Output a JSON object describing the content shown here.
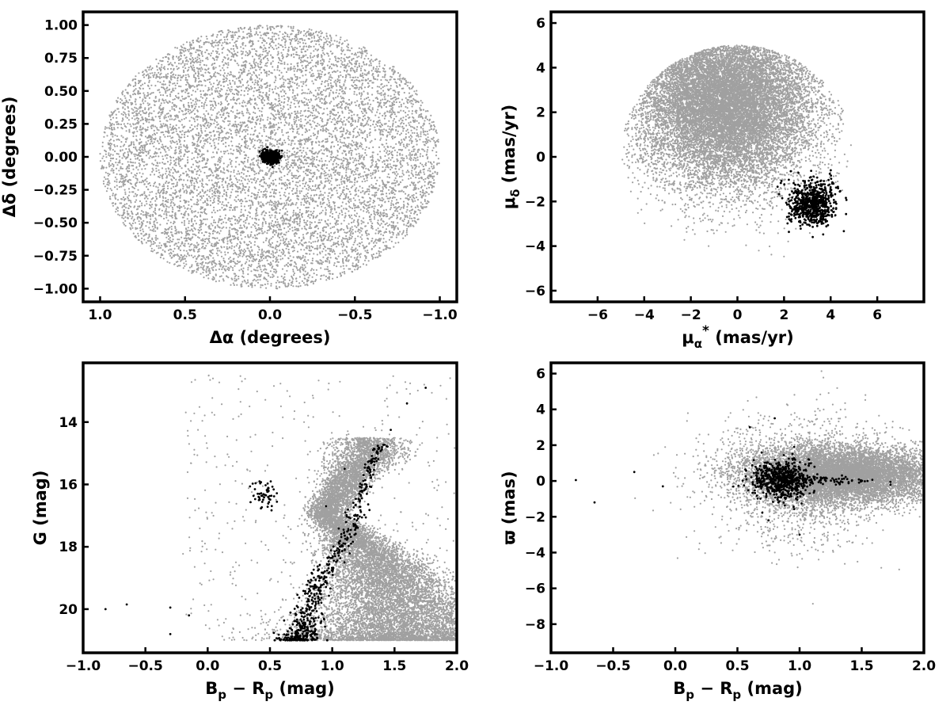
{
  "colors": {
    "field": "#a0a0a0",
    "members": "#000000",
    "frame": "#000000",
    "background": "#ffffff"
  },
  "chart_data": [
    {
      "id": "sky",
      "type": "scatter",
      "xlabel": "Δα (degrees)",
      "ylabel": "Δδ (degrees)",
      "xlim": [
        1.1,
        -1.1
      ],
      "ylim": [
        -1.1,
        1.1
      ],
      "x_inverted": true,
      "xticks": [
        1.0,
        0.5,
        0.0,
        -0.5,
        -1.0
      ],
      "xtick_labels": [
        "1.0",
        "0.5",
        "0.0",
        "−0.5",
        "−1.0"
      ],
      "yticks": [
        1.0,
        0.75,
        0.5,
        0.25,
        0.0,
        -0.25,
        -0.5,
        -0.75,
        -1.0
      ],
      "ytick_labels": [
        "1.00",
        "0.75",
        "0.50",
        "0.25",
        "0.00",
        "−0.25",
        "−0.50",
        "−0.75",
        "−1.00"
      ],
      "series": [
        {
          "role": "field",
          "color": "#a0a0a0",
          "distribution": "uniform disk",
          "center": [
            0,
            0
          ],
          "radius": 1.0,
          "n": 9000
        },
        {
          "role": "members",
          "color": "#000000",
          "distribution": "gaussian",
          "center": [
            0,
            0
          ],
          "sigma": [
            0.022,
            0.022
          ],
          "n": 700
        }
      ]
    },
    {
      "id": "pm",
      "type": "scatter",
      "xlabel_parts": [
        "μ",
        "α",
        "*",
        " (mas/yr)"
      ],
      "ylabel_parts": [
        "μ",
        "δ",
        " (mas/yr)"
      ],
      "xlim": [
        -8,
        8
      ],
      "ylim": [
        -6.5,
        6.5
      ],
      "xticks": [
        -6,
        -4,
        -2,
        0,
        2,
        4,
        6
      ],
      "xtick_labels": [
        "−6",
        "−4",
        "−2",
        "0",
        "2",
        "4",
        "6"
      ],
      "yticks": [
        -6,
        -4,
        -2,
        0,
        2,
        4,
        6
      ],
      "ytick_labels": [
        "−6",
        "−4",
        "−2",
        "0",
        "2",
        "4",
        "6"
      ],
      "series": [
        {
          "role": "field",
          "color": "#a0a0a0",
          "distribution": "gaussian clipped to disk",
          "center": [
            -0.5,
            2.5
          ],
          "sigma": [
            1.9,
            1.9
          ],
          "clip_center": [
            0,
            0
          ],
          "clip_radius": 5.0,
          "n": 14000
        },
        {
          "role": "members",
          "color": "#000000",
          "distribution": "gaussian",
          "center": [
            3.2,
            -2.1
          ],
          "sigma": [
            0.5,
            0.5
          ],
          "n": 700
        }
      ]
    },
    {
      "id": "cmd",
      "type": "scatter",
      "xlabel_parts": [
        "B",
        "p",
        " − ",
        "R",
        "p",
        " (mag)"
      ],
      "ylabel": "G (mag)",
      "xlim": [
        -1.0,
        2.0
      ],
      "ylim": [
        21.4,
        12.1
      ],
      "y_inverted": true,
      "xticks": [
        -1.0,
        -0.5,
        0.0,
        0.5,
        1.0,
        1.5,
        2.0
      ],
      "xtick_labels": [
        "−1.0",
        "−0.5",
        "0.0",
        "0.5",
        "1.0",
        "1.5",
        "2.0"
      ],
      "yticks": [
        20,
        18,
        16,
        14
      ],
      "ytick_labels": [
        "20",
        "18",
        "16",
        "14"
      ],
      "field_sequence": {
        "G": [
          21.0,
          20.0,
          19.0,
          18.0,
          17.0,
          16.0,
          15.0
        ],
        "color": [
          1.6,
          1.55,
          1.45,
          1.25,
          0.95,
          1.1,
          1.3
        ],
        "scatter": [
          0.5,
          0.35,
          0.25,
          0.15,
          0.08,
          0.1,
          0.15
        ],
        "n": 12000
      },
      "member_sequence": {
        "G": [
          21.0,
          20.5,
          20.0,
          19.5,
          19.0,
          18.5,
          18.0,
          17.5,
          17.0,
          16.5,
          16.0,
          15.5,
          15.0,
          14.7
        ],
        "color": [
          0.72,
          0.78,
          0.8,
          0.84,
          0.9,
          1.0,
          1.08,
          1.13,
          1.18,
          1.22,
          1.27,
          1.3,
          1.35,
          1.4
        ],
        "scatter": [
          0.08,
          0.07,
          0.06,
          0.05,
          0.05,
          0.05,
          0.04,
          0.04,
          0.04,
          0.04,
          0.04,
          0.04,
          0.03,
          0.03
        ],
        "n": 560
      },
      "member_clump": {
        "center": [
          0.45,
          16.3
        ],
        "sigma": [
          0.06,
          0.25
        ],
        "n": 55
      },
      "member_outliers": [
        [
          -0.82,
          20.0
        ],
        [
          -0.65,
          19.85
        ],
        [
          -0.3,
          19.95
        ],
        [
          -0.15,
          20.2
        ],
        [
          -0.3,
          20.8
        ],
        [
          1.6,
          13.4
        ],
        [
          1.75,
          12.9
        ],
        [
          1.47,
          14.25
        ],
        [
          0.95,
          16.7
        ],
        [
          1.1,
          15.5
        ]
      ]
    },
    {
      "id": "plx",
      "type": "scatter",
      "xlabel_parts": [
        "B",
        "p",
        " − ",
        "R",
        "p",
        " (mag)"
      ],
      "ylabel": "ϖ (mas)",
      "xlim": [
        -1.0,
        2.0
      ],
      "ylim": [
        -9.6,
        6.6
      ],
      "xticks": [
        -1.0,
        -0.5,
        0.0,
        0.5,
        1.0,
        1.5,
        2.0
      ],
      "xtick_labels": [
        "−1.0",
        "−0.5",
        "0.0",
        "0.5",
        "1.0",
        "1.5",
        "2.0"
      ],
      "yticks": [
        6,
        4,
        2,
        0,
        -2,
        -4,
        -6,
        -8
      ],
      "ytick_labels": [
        "6",
        "4",
        "2",
        "0",
        "−2",
        "−4",
        "−6",
        "−8"
      ],
      "series": [
        {
          "role": "field",
          "color": "#a0a0a0",
          "distribution": "gaussian",
          "center": [
            1.35,
            0.3
          ],
          "sigma": [
            0.4,
            0.8
          ],
          "n": 9000
        },
        {
          "role": "field_wide",
          "color": "#a0a0a0",
          "distribution": "gaussian",
          "center": [
            1.0,
            0.0
          ],
          "sigma": [
            0.35,
            1.8
          ],
          "n": 1500
        },
        {
          "role": "members",
          "color": "#000000",
          "distribution": "gaussian",
          "center": [
            0.85,
            0.05
          ],
          "sigma": [
            0.12,
            0.55
          ],
          "n": 620
        },
        {
          "role": "members_tail",
          "color": "#000000",
          "distribution": "gaussian",
          "center": [
            1.15,
            0.05
          ],
          "sigma": [
            0.22,
            0.12
          ],
          "n": 90
        }
      ],
      "member_outliers": [
        [
          -0.8,
          0.05
        ],
        [
          -0.65,
          -1.2
        ],
        [
          -0.33,
          0.5
        ],
        [
          -0.1,
          -0.3
        ],
        [
          0.6,
          3.0
        ],
        [
          0.8,
          3.5
        ],
        [
          1.0,
          -3.0
        ],
        [
          0.75,
          -2.2
        ]
      ]
    }
  ]
}
